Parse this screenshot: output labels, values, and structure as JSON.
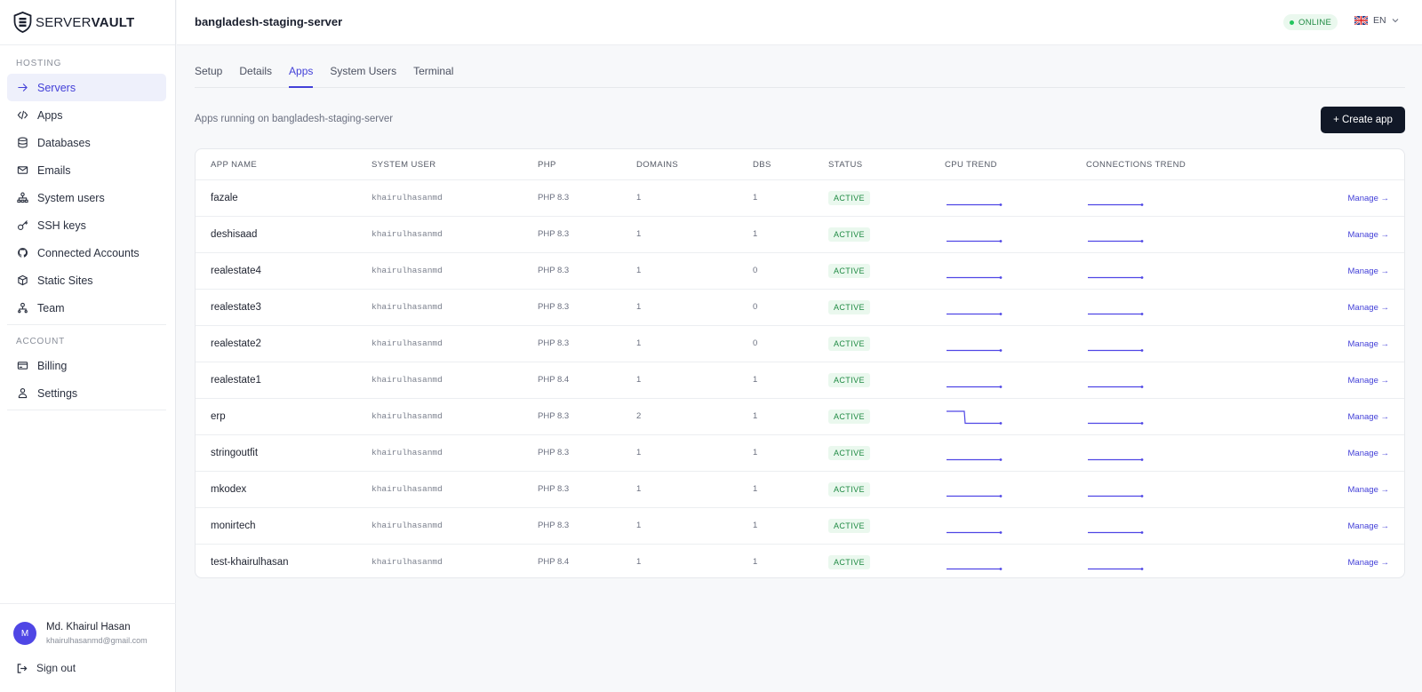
{
  "brand": {
    "prefix": "SERVER",
    "suffix": "VAULT"
  },
  "sidebar": {
    "hosting_label": "HOSTING",
    "hosting_items": [
      {
        "label": "Servers",
        "icon": "arrow-right-icon",
        "active": true
      },
      {
        "label": "Apps",
        "icon": "code-icon"
      },
      {
        "label": "Databases",
        "icon": "database-icon"
      },
      {
        "label": "Emails",
        "icon": "mail-icon"
      },
      {
        "label": "System users",
        "icon": "users-network-icon"
      },
      {
        "label": "SSH keys",
        "icon": "key-icon"
      },
      {
        "label": "Connected Accounts",
        "icon": "github-icon"
      },
      {
        "label": "Static Sites",
        "icon": "globe-icon"
      },
      {
        "label": "Team",
        "icon": "team-icon"
      }
    ],
    "account_label": "ACCOUNT",
    "account_items": [
      {
        "label": "Billing",
        "icon": "credit-card-icon"
      },
      {
        "label": "Settings",
        "icon": "user-icon"
      }
    ]
  },
  "user": {
    "initial": "M",
    "name": "Md. Khairul Hasan",
    "email": "khairulhasanmd@gmail.com",
    "signout_label": "Sign out"
  },
  "header": {
    "server_name": "bangladesh-staging-server",
    "status": "ONLINE",
    "language": "EN"
  },
  "tabs": [
    {
      "label": "Setup"
    },
    {
      "label": "Details"
    },
    {
      "label": "Apps",
      "active": true
    },
    {
      "label": "System Users"
    },
    {
      "label": "Terminal"
    }
  ],
  "apps_section": {
    "subtitle": "Apps running on bangladesh-staging-server",
    "create_label": "+ Create app"
  },
  "table": {
    "columns": [
      "APP NAME",
      "SYSTEM USER",
      "PHP",
      "DOMAINS",
      "DBS",
      "STATUS",
      "CPU TREND",
      "CONNECTIONS TREND"
    ],
    "manage_label": "Manage →",
    "rows": [
      {
        "name": "fazale",
        "user": "khairulhasanmd",
        "php": "PHP 8.3",
        "domains": "1",
        "dbs": "1",
        "status": "ACTIVE",
        "cpu": "flat",
        "conn": "flat"
      },
      {
        "name": "deshisaad",
        "user": "khairulhasanmd",
        "php": "PHP 8.3",
        "domains": "1",
        "dbs": "1",
        "status": "ACTIVE",
        "cpu": "flat",
        "conn": "flat"
      },
      {
        "name": "realestate4",
        "user": "khairulhasanmd",
        "php": "PHP 8.3",
        "domains": "1",
        "dbs": "0",
        "status": "ACTIVE",
        "cpu": "flat",
        "conn": "flat"
      },
      {
        "name": "realestate3",
        "user": "khairulhasanmd",
        "php": "PHP 8.3",
        "domains": "1",
        "dbs": "0",
        "status": "ACTIVE",
        "cpu": "flat",
        "conn": "flat"
      },
      {
        "name": "realestate2",
        "user": "khairulhasanmd",
        "php": "PHP 8.3",
        "domains": "1",
        "dbs": "0",
        "status": "ACTIVE",
        "cpu": "flat",
        "conn": "flat"
      },
      {
        "name": "realestate1",
        "user": "khairulhasanmd",
        "php": "PHP 8.4",
        "domains": "1",
        "dbs": "1",
        "status": "ACTIVE",
        "cpu": "flat",
        "conn": "flat"
      },
      {
        "name": "erp",
        "user": "khairulhasanmd",
        "php": "PHP 8.3",
        "domains": "2",
        "dbs": "1",
        "status": "ACTIVE",
        "cpu": "drop",
        "conn": "flat"
      },
      {
        "name": "stringoutfit",
        "user": "khairulhasanmd",
        "php": "PHP 8.3",
        "domains": "1",
        "dbs": "1",
        "status": "ACTIVE",
        "cpu": "flat",
        "conn": "flat"
      },
      {
        "name": "mkodex",
        "user": "khairulhasanmd",
        "php": "PHP 8.3",
        "domains": "1",
        "dbs": "1",
        "status": "ACTIVE",
        "cpu": "flat",
        "conn": "flat"
      },
      {
        "name": "monirtech",
        "user": "khairulhasanmd",
        "php": "PHP 8.3",
        "domains": "1",
        "dbs": "1",
        "status": "ACTIVE",
        "cpu": "flat",
        "conn": "flat"
      },
      {
        "name": "test-khairulhasan",
        "user": "khairulhasanmd",
        "php": "PHP 8.4",
        "domains": "1",
        "dbs": "1",
        "status": "ACTIVE",
        "cpu": "flat",
        "conn": "flat"
      }
    ]
  },
  "colors": {
    "accent": "#4340d8",
    "primary_button": "#111827",
    "status_active": "#1f8a43",
    "online": "#22c55e",
    "sparkline": "#4f46e5"
  }
}
